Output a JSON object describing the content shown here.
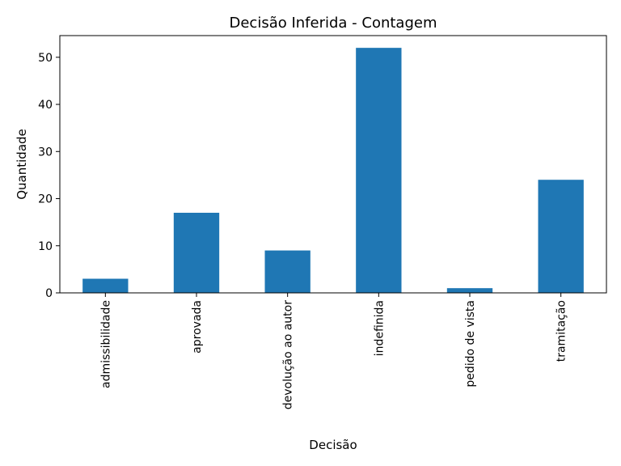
{
  "chart_data": {
    "type": "bar",
    "title": "Decisão Inferida - Contagem",
    "xlabel": "Decisão",
    "ylabel": "Quantidade",
    "categories": [
      "admissibilidade",
      "aprovada",
      "devolução ao autor",
      "indefinida",
      "pedido de vista",
      "tramitação"
    ],
    "values": [
      3,
      17,
      9,
      52,
      1,
      24
    ],
    "ylim": [
      0,
      54.6
    ],
    "yticks": [
      0,
      10,
      20,
      30,
      40,
      50
    ],
    "grid": false,
    "legend": "none",
    "bar_color": "#1f77b4"
  }
}
